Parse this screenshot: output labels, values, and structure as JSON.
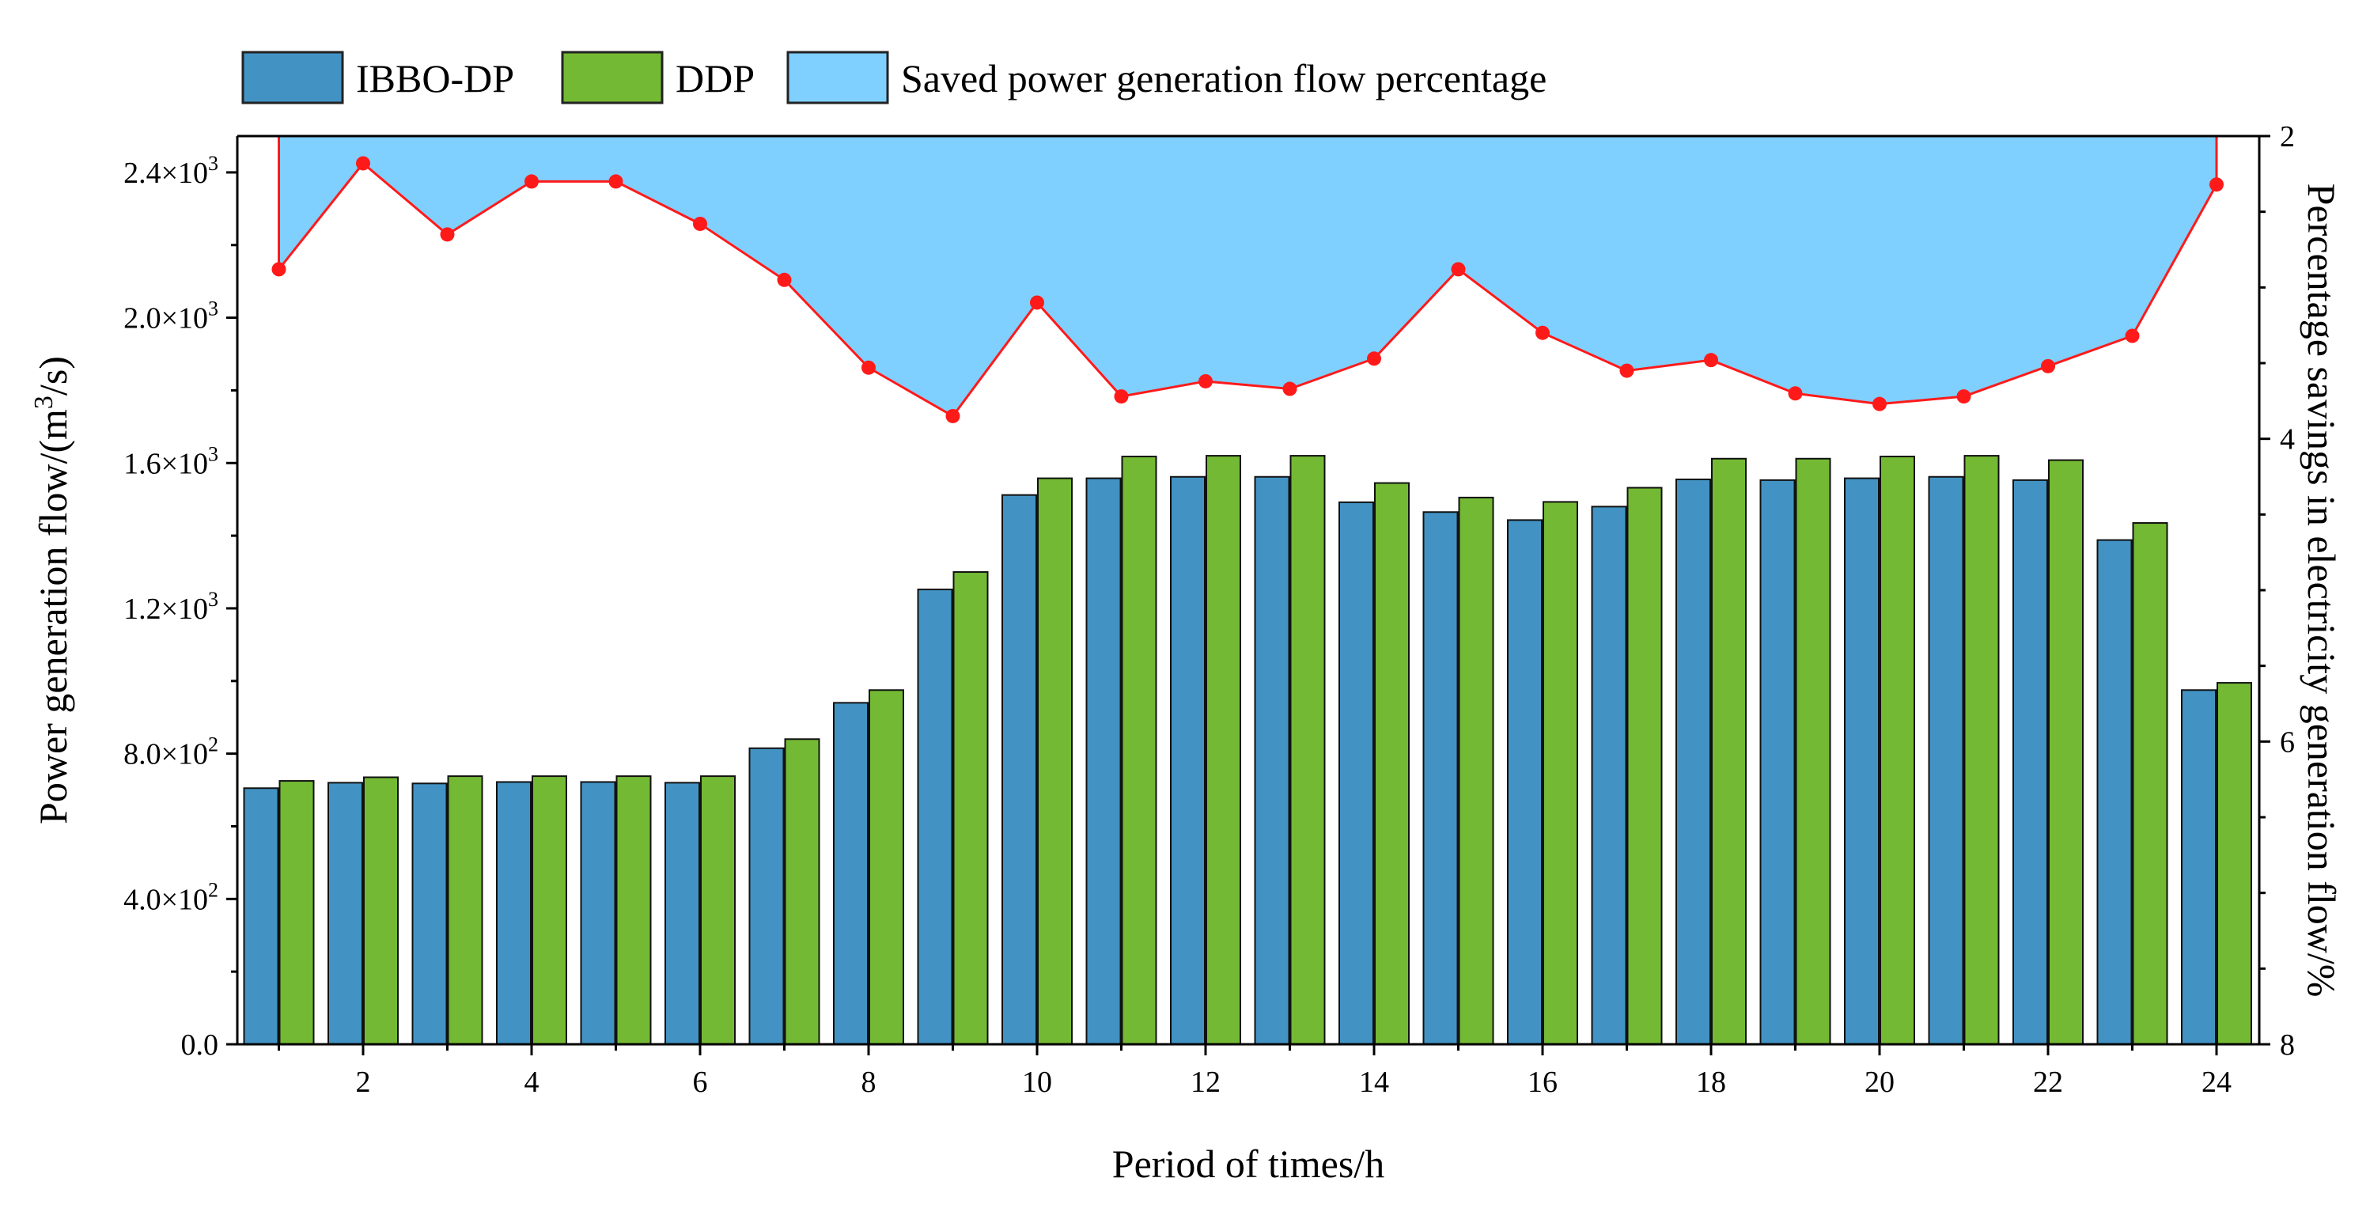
{
  "chart_data": {
    "type": "bar",
    "title": "",
    "xlabel": "Period of times/h",
    "ylabel_prefix": "Power generation flow/(m",
    "ylabel_sup": "3",
    "ylabel_suffix": "/s)",
    "y2label": "Percentage savings in electricity generation flow/%",
    "x": [
      1,
      2,
      3,
      4,
      5,
      6,
      7,
      8,
      9,
      10,
      11,
      12,
      13,
      14,
      15,
      16,
      17,
      18,
      19,
      20,
      21,
      22,
      23,
      24
    ],
    "x_tick_labels": [
      "2",
      "4",
      "6",
      "8",
      "10",
      "12",
      "14",
      "16",
      "18",
      "20",
      "22",
      "24"
    ],
    "x_tick_values": [
      2,
      4,
      6,
      8,
      10,
      12,
      14,
      16,
      18,
      20,
      22,
      24
    ],
    "ylim": [
      0,
      2500
    ],
    "y_ticks": [
      {
        "value": 0,
        "mant": "0.0",
        "exp": ""
      },
      {
        "value": 400,
        "mant": "4.0×10",
        "exp": "2"
      },
      {
        "value": 800,
        "mant": "8.0×10",
        "exp": "2"
      },
      {
        "value": 1200,
        "mant": "1.2×10",
        "exp": "3"
      },
      {
        "value": 1600,
        "mant": "1.6×10",
        "exp": "3"
      },
      {
        "value": 2000,
        "mant": "2.0×10",
        "exp": "3"
      },
      {
        "value": 2400,
        "mant": "2.4×10",
        "exp": "3"
      }
    ],
    "y2lim_top_to_bottom": [
      2,
      8
    ],
    "y2_ticks": [
      "2",
      "4",
      "6",
      "8"
    ],
    "series": [
      {
        "name": "IBBO-DP",
        "type": "bar",
        "color": "#4293c4",
        "values": [
          705,
          720,
          718,
          722,
          722,
          720,
          815,
          940,
          1252,
          1512,
          1558,
          1562,
          1562,
          1492,
          1465,
          1443,
          1480,
          1555,
          1553,
          1558,
          1562,
          1553,
          1388,
          975
        ]
      },
      {
        "name": "DDP",
        "type": "bar",
        "color": "#74b934",
        "values": [
          725,
          735,
          738,
          738,
          738,
          738,
          840,
          975,
          1300,
          1558,
          1618,
          1620,
          1620,
          1545,
          1505,
          1493,
          1532,
          1612,
          1612,
          1618,
          1620,
          1608,
          1435,
          995
        ]
      },
      {
        "name": "Saved power generation flow percentage",
        "type": "area-line",
        "axis": "right",
        "fill_color": "#7fcfff",
        "line_color": "#ff1a1a",
        "values": [
          2.88,
          2.18,
          2.65,
          2.3,
          2.3,
          2.58,
          2.95,
          3.53,
          3.85,
          3.1,
          3.72,
          3.62,
          3.67,
          3.47,
          2.88,
          3.3,
          3.55,
          3.48,
          3.7,
          3.77,
          3.72,
          3.52,
          3.32,
          2.32
        ]
      }
    ],
    "legend_position": "top-left"
  }
}
